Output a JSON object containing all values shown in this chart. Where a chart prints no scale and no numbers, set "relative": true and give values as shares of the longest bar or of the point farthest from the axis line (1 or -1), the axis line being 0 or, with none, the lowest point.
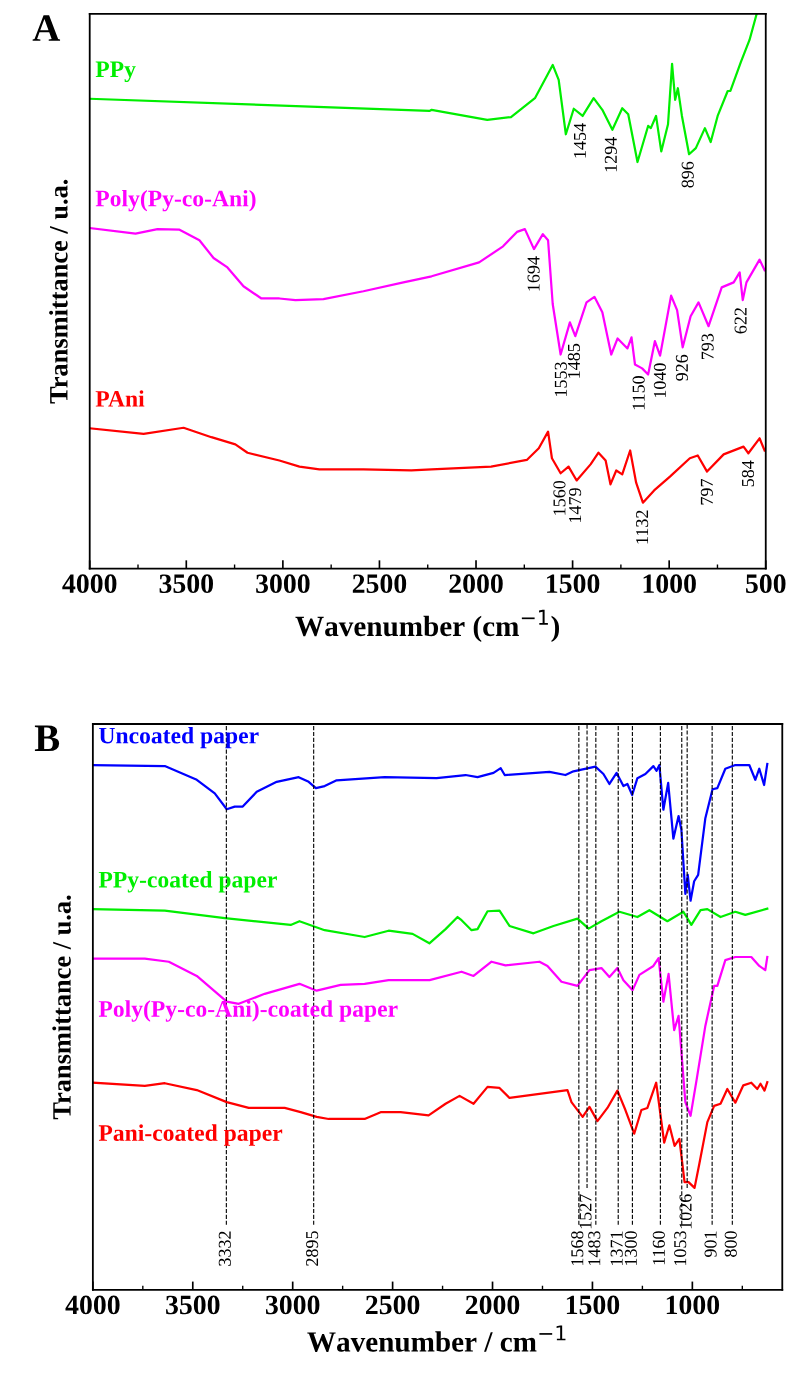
{
  "chart_data": [
    {
      "type": "line",
      "title": "A",
      "xlabel": "Wavenumber (cm$^{−1}$)",
      "ylabel": "Transmittance / u.a.",
      "relative": true,
      "tick_labels": "x",
      "line_style": "solid",
      "xlim": [
        4000,
        500
      ],
      "xticks": [
        4000,
        3500,
        3000,
        2500,
        2000,
        1500,
        1000,
        500
      ],
      "series": [
        {
          "name": "PPy",
          "color": "#00ee00",
          "x": [
            4000,
            2241,
            2230,
            1942,
            1819,
            1695,
            1603,
            1572,
            1535,
            1494,
            1448,
            1391,
            1346,
            1294,
            1243,
            1212,
            1164,
            1109,
            1095,
            1068,
            1041,
            1006,
            985,
            969,
            955,
            934,
            897,
            862,
            815,
            785,
            749,
            697,
            683,
            629,
            584,
            547
          ],
          "values": [
            0.847,
            0.825,
            0.827,
            0.809,
            0.814,
            0.848,
            0.908,
            0.881,
            0.783,
            0.829,
            0.816,
            0.848,
            0.827,
            0.791,
            0.83,
            0.819,
            0.733,
            0.798,
            0.794,
            0.816,
            0.752,
            0.801,
            0.91,
            0.845,
            0.866,
            0.816,
            0.747,
            0.758,
            0.794,
            0.769,
            0.816,
            0.861,
            0.861,
            0.913,
            0.953,
            1.0
          ]
        },
        {
          "name": "Poly(Py-co-Ani)",
          "color": "#ff00ff",
          "x": [
            4000,
            3763,
            3649,
            3535,
            3432,
            3359,
            3287,
            3204,
            3111,
            3018,
            2935,
            2790,
            2583,
            2376,
            2230,
            1984,
            1860,
            1788,
            1747,
            1700,
            1654,
            1627,
            1603,
            1562,
            1514,
            1486,
            1428,
            1387,
            1346,
            1300,
            1267,
            1216,
            1195,
            1177,
            1140,
            1109,
            1074,
            1047,
            990,
            959,
            930,
            889,
            848,
            796,
            728,
            666,
            635,
            619,
            600,
            532,
            506
          ],
          "values": [
            0.614,
            0.604,
            0.612,
            0.611,
            0.592,
            0.56,
            0.543,
            0.509,
            0.487,
            0.487,
            0.484,
            0.486,
            0.5,
            0.516,
            0.527,
            0.552,
            0.581,
            0.607,
            0.612,
            0.576,
            0.603,
            0.592,
            0.477,
            0.386,
            0.444,
            0.419,
            0.48,
            0.49,
            0.462,
            0.386,
            0.415,
            0.397,
            0.417,
            0.368,
            0.361,
            0.35,
            0.41,
            0.384,
            0.492,
            0.466,
            0.399,
            0.455,
            0.48,
            0.437,
            0.507,
            0.516,
            0.534,
            0.484,
            0.516,
            0.557,
            0.538
          ]
        },
        {
          "name": "PAni",
          "color": "#ff0000",
          "x": [
            4000,
            3721,
            3514,
            3370,
            3246,
            3183,
            3018,
            2914,
            2811,
            2583,
            2335,
            2230,
            1922,
            1737,
            1675,
            1627,
            1607,
            1562,
            1521,
            1479,
            1407,
            1366,
            1329,
            1304,
            1274,
            1243,
            1202,
            1171,
            1136,
            1078,
            996,
            893,
            852,
            804,
            718,
            615,
            590,
            532,
            506
          ],
          "values": [
            0.253,
            0.243,
            0.254,
            0.237,
            0.224,
            0.209,
            0.195,
            0.184,
            0.179,
            0.179,
            0.177,
            0.179,
            0.184,
            0.196,
            0.217,
            0.247,
            0.199,
            0.172,
            0.184,
            0.159,
            0.188,
            0.209,
            0.195,
            0.152,
            0.177,
            0.17,
            0.213,
            0.155,
            0.119,
            0.141,
            0.166,
            0.199,
            0.204,
            0.175,
            0.206,
            0.22,
            0.208,
            0.235,
            0.213
          ]
        }
      ],
      "annotations": [
        {
          "text": "1454",
          "x": 1454,
          "y": 0.816
        },
        {
          "text": "1294",
          "x": 1294,
          "y": 0.791
        },
        {
          "text": "896",
          "x": 896,
          "y": 0.747
        },
        {
          "text": "1694",
          "x": 1694,
          "y": 0.576
        },
        {
          "text": "1553",
          "x": 1553,
          "y": 0.386
        },
        {
          "text": "1485",
          "x": 1485,
          "y": 0.419
        },
        {
          "text": "1150",
          "x": 1150,
          "y": 0.361
        },
        {
          "text": "1040",
          "x": 1040,
          "y": 0.384
        },
        {
          "text": "926",
          "x": 926,
          "y": 0.399
        },
        {
          "text": "793",
          "x": 793,
          "y": 0.437
        },
        {
          "text": "622",
          "x": 622,
          "y": 0.484
        },
        {
          "text": "1560",
          "x": 1560,
          "y": 0.172
        },
        {
          "text": "1479",
          "x": 1479,
          "y": 0.159
        },
        {
          "text": "1132",
          "x": 1132,
          "y": 0.119
        },
        {
          "text": "797",
          "x": 797,
          "y": 0.175
        },
        {
          "text": "584",
          "x": 584,
          "y": 0.208
        }
      ]
    },
    {
      "type": "line",
      "title": "B",
      "xlabel": "Wavenumber / cm$^{−1}$",
      "ylabel": "Transmittance / u.a.",
      "relative": true,
      "tick_labels": "x",
      "line_style": "solid",
      "xlim": [
        4000,
        550
      ],
      "xticks": [
        4000,
        3500,
        3000,
        2500,
        2000,
        1500,
        1000
      ],
      "series": [
        {
          "name": "Uncoated paper",
          "color": "#0000ff",
          "x": [
            4000,
            3640,
            3480,
            3390,
            3330,
            3290,
            3250,
            3180,
            3080,
            2970,
            2920,
            2884,
            2840,
            2780,
            2540,
            2280,
            2135,
            2075,
            1995,
            1959,
            1939,
            1715,
            1635,
            1595,
            1485,
            1445,
            1415,
            1379,
            1345,
            1325,
            1301,
            1275,
            1235,
            1195,
            1179,
            1165,
            1145,
            1121,
            1095,
            1069,
            1055,
            1035,
            1023,
            1009,
            991,
            971,
            935,
            899,
            875,
            835,
            785,
            715,
            685,
            665,
            641,
            625
          ],
          "values": [
            0.998,
            0.996,
            0.97,
            0.944,
            0.914,
            0.919,
            0.919,
            0.947,
            0.966,
            0.975,
            0.966,
            0.954,
            0.958,
            0.969,
            0.975,
            0.973,
            0.979,
            0.975,
            0.983,
            0.992,
            0.979,
            0.985,
            0.979,
            0.986,
            0.995,
            0.981,
            0.962,
            0.983,
            0.958,
            0.962,
            0.941,
            0.973,
            0.981,
            0.996,
            0.987,
            0.998,
            0.913,
            0.964,
            0.858,
            0.901,
            0.875,
            0.753,
            0.789,
            0.74,
            0.777,
            0.789,
            0.897,
            0.952,
            0.954,
            0.991,
            0.998,
            0.998,
            0.97,
            0.991,
            0.96,
            1.0
          ]
        },
        {
          "name": "PPy-coated paper",
          "color": "#00ee00",
          "x": [
            4000,
            3640,
            3340,
            3010,
            2966,
            2840,
            2640,
            2520,
            2400,
            2316,
            2235,
            2175,
            2155,
            2105,
            2075,
            2025,
            1965,
            1915,
            1795,
            1695,
            1575,
            1519,
            1455,
            1365,
            1275,
            1215,
            1125,
            1045,
            1005,
            959,
            925,
            859,
            785,
            735,
            625
          ],
          "values": [
            0.724,
            0.721,
            0.707,
            0.694,
            0.701,
            0.684,
            0.671,
            0.683,
            0.677,
            0.659,
            0.686,
            0.709,
            0.703,
            0.684,
            0.686,
            0.72,
            0.721,
            0.692,
            0.678,
            0.692,
            0.706,
            0.687,
            0.701,
            0.719,
            0.709,
            0.722,
            0.701,
            0.719,
            0.694,
            0.722,
            0.724,
            0.709,
            0.719,
            0.713,
            0.725
          ]
        },
        {
          "name": "Poly(Py-co-Ani)-coated paper",
          "color": "#ff00ff",
          "x": [
            4000,
            3740,
            3620,
            3480,
            3330,
            3270,
            3140,
            2966,
            2880,
            2760,
            2640,
            2520,
            2315,
            2155,
            2095,
            2005,
            1935,
            1765,
            1725,
            1655,
            1575,
            1515,
            1455,
            1415,
            1375,
            1345,
            1299,
            1265,
            1195,
            1169,
            1145,
            1119,
            1091,
            1069,
            1035,
            1009,
            979,
            935,
            891,
            875,
            835,
            785,
            705,
            665,
            635,
            625
          ],
          "values": [
            0.63,
            0.63,
            0.624,
            0.597,
            0.548,
            0.544,
            0.563,
            0.582,
            0.569,
            0.58,
            0.582,
            0.589,
            0.589,
            0.605,
            0.597,
            0.624,
            0.617,
            0.624,
            0.616,
            0.586,
            0.578,
            0.608,
            0.612,
            0.595,
            0.612,
            0.589,
            0.57,
            0.599,
            0.616,
            0.631,
            0.548,
            0.601,
            0.494,
            0.521,
            0.357,
            0.331,
            0.399,
            0.502,
            0.578,
            0.578,
            0.627,
            0.633,
            0.633,
            0.616,
            0.608,
            0.633
          ]
        },
        {
          "name": "Pani-coated paper",
          "color": "#ff0000",
          "x": [
            4000,
            3740,
            3640,
            3480,
            3330,
            3220,
            3040,
            2960,
            2880,
            2820,
            2640,
            2560,
            2460,
            2320,
            2235,
            2165,
            2095,
            2025,
            1965,
            1915,
            1625,
            1605,
            1549,
            1515,
            1475,
            1425,
            1375,
            1335,
            1291,
            1255,
            1225,
            1181,
            1141,
            1115,
            1089,
            1065,
            1039,
            1019,
            989,
            965,
            925,
            891,
            859,
            825,
            785,
            745,
            705,
            675,
            659,
            639,
            625
          ],
          "values": [
            0.394,
            0.388,
            0.393,
            0.38,
            0.357,
            0.346,
            0.346,
            0.338,
            0.329,
            0.325,
            0.325,
            0.338,
            0.338,
            0.332,
            0.354,
            0.369,
            0.354,
            0.386,
            0.384,
            0.365,
            0.38,
            0.357,
            0.329,
            0.348,
            0.321,
            0.346,
            0.379,
            0.342,
            0.297,
            0.342,
            0.346,
            0.394,
            0.28,
            0.313,
            0.274,
            0.287,
            0.205,
            0.205,
            0.194,
            0.24,
            0.319,
            0.35,
            0.354,
            0.382,
            0.356,
            0.389,
            0.394,
            0.382,
            0.392,
            0.379,
            0.395
          ]
        }
      ],
      "ref_lines": [
        {
          "axis": "x",
          "value": 3332,
          "label": "3332",
          "color": "#000000",
          "line_style": "dashed"
        },
        {
          "axis": "x",
          "value": 2895,
          "label": "2895",
          "color": "#000000",
          "line_style": "dashed"
        },
        {
          "axis": "x",
          "value": 1568,
          "label": "1568",
          "color": "#000000",
          "line_style": "dashed"
        },
        {
          "axis": "x",
          "value": 1527,
          "label": "1527",
          "color": "#000000",
          "line_style": "dashed"
        },
        {
          "axis": "x",
          "value": 1483,
          "label": "1483",
          "color": "#000000",
          "line_style": "dashed"
        },
        {
          "axis": "x",
          "value": 1371,
          "label": "1371",
          "color": "#000000",
          "line_style": "dashed"
        },
        {
          "axis": "x",
          "value": 1300,
          "label": "1300",
          "color": "#000000",
          "line_style": "dashed"
        },
        {
          "axis": "x",
          "value": 1160,
          "label": "1160",
          "color": "#000000",
          "line_style": "dashed"
        },
        {
          "axis": "x",
          "value": 1053,
          "label": "1053",
          "color": "#000000",
          "line_style": "dashed"
        },
        {
          "axis": "x",
          "value": 1026,
          "label": "1026",
          "color": "#000000",
          "line_style": "dashed"
        },
        {
          "axis": "x",
          "value": 901,
          "label": "901",
          "color": "#000000",
          "line_style": "dashed"
        },
        {
          "axis": "x",
          "value": 800,
          "label": "800",
          "color": "#000000",
          "line_style": "dashed"
        }
      ]
    }
  ]
}
